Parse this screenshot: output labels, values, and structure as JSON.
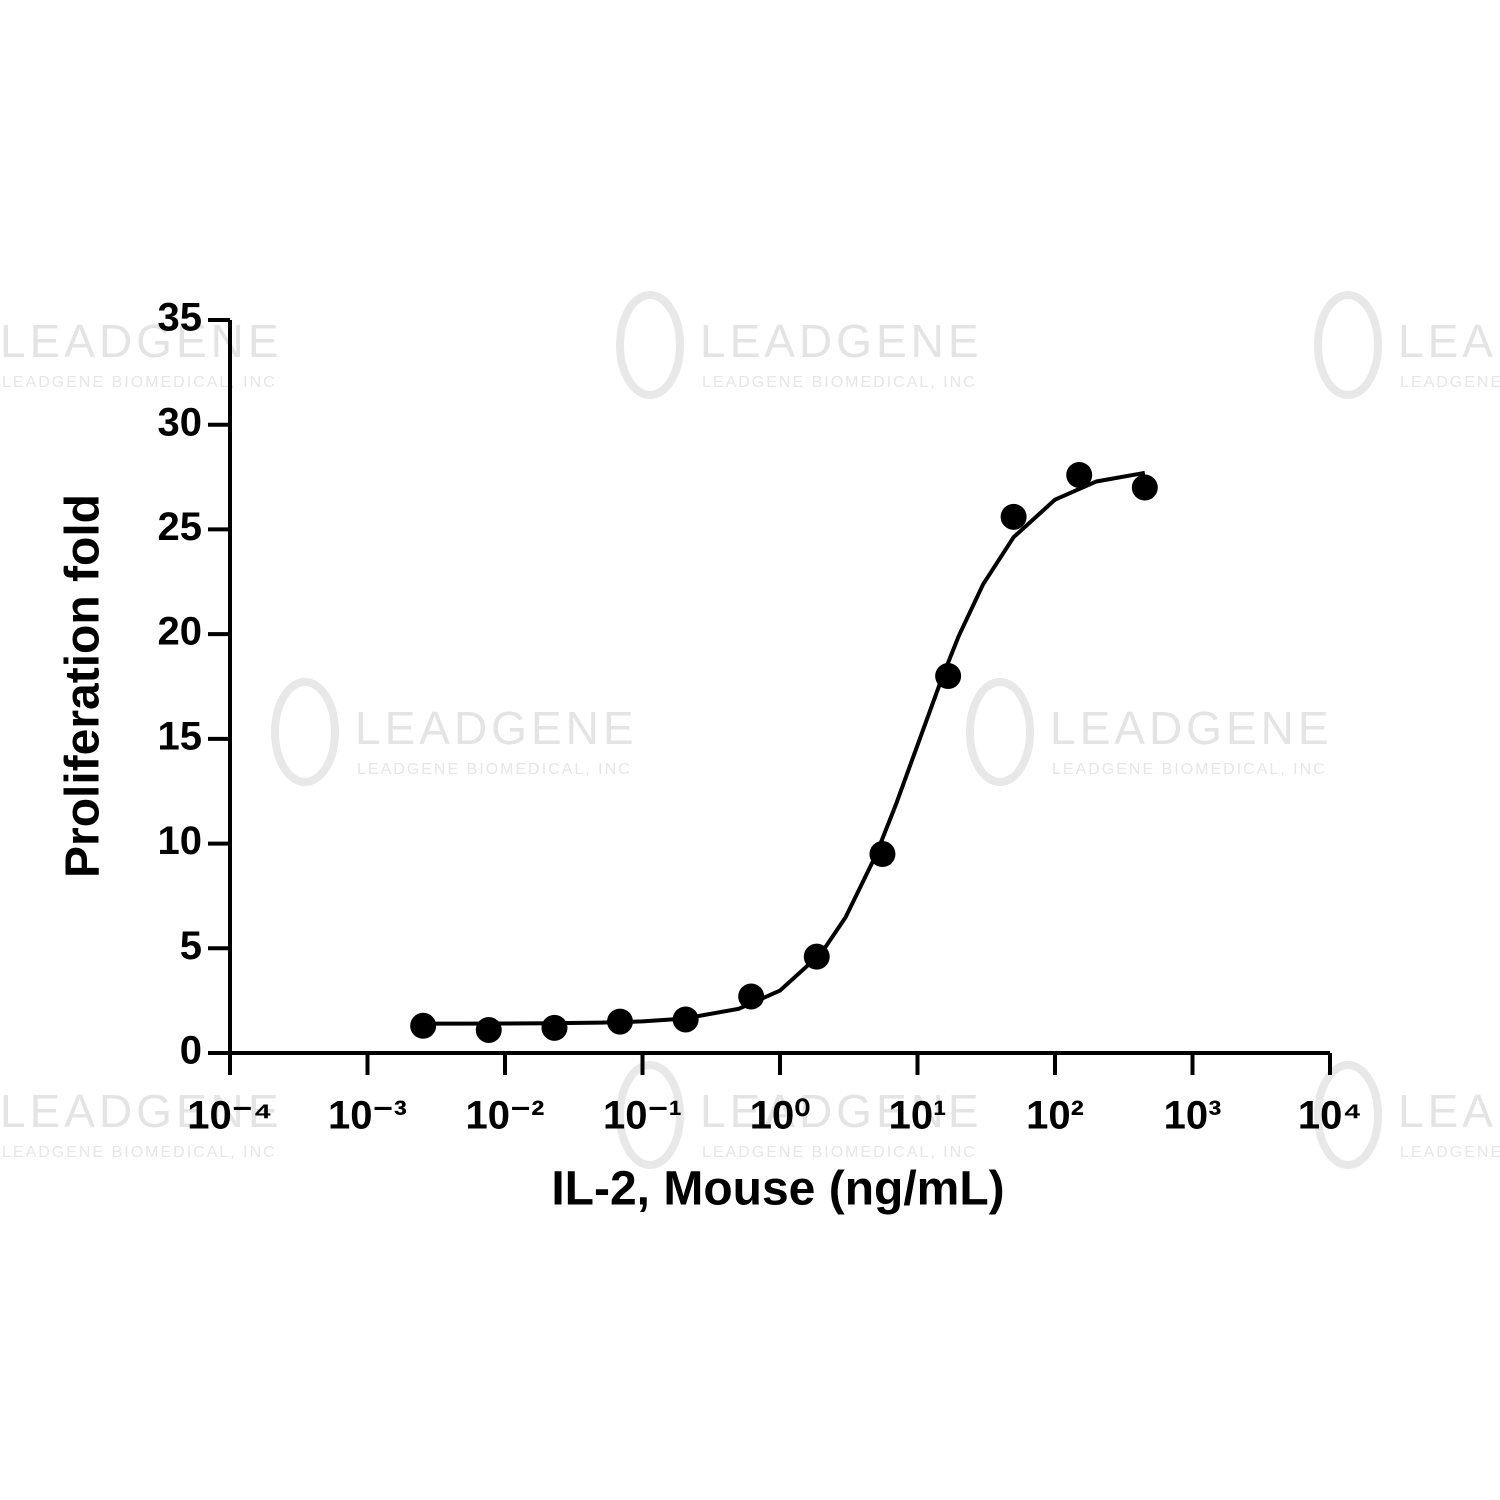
{
  "chart_data": {
    "type": "scatter",
    "xlabel": "IL-2, Mouse (ng/mL)",
    "ylabel": "Proliferation fold",
    "xscale": "log",
    "xlim": [
      0.0001,
      10000
    ],
    "ylim": [
      0,
      35
    ],
    "xticks": [
      {
        "value": 0.0001,
        "label": "10⁻⁴"
      },
      {
        "value": 0.001,
        "label": "10⁻³"
      },
      {
        "value": 0.01,
        "label": "10⁻²"
      },
      {
        "value": 0.1,
        "label": "10⁻¹"
      },
      {
        "value": 1,
        "label": "10⁰"
      },
      {
        "value": 10,
        "label": "10¹"
      },
      {
        "value": 100,
        "label": "10²"
      },
      {
        "value": 1000,
        "label": "10³"
      },
      {
        "value": 10000,
        "label": "10⁴"
      }
    ],
    "yticks": [
      0,
      5,
      10,
      15,
      20,
      25,
      30,
      35
    ],
    "grid": false,
    "series": [
      {
        "style": "points",
        "color": "#000000",
        "x": [
          0.00254,
          0.00762,
          0.0229,
          0.0686,
          0.206,
          0.617,
          1.85,
          5.56,
          16.7,
          50,
          150,
          450
        ],
        "values": [
          1.3,
          1.1,
          1.2,
          1.5,
          1.6,
          2.7,
          4.6,
          9.5,
          18.0,
          25.6,
          27.6,
          27.0
        ]
      },
      {
        "style": "line",
        "color": "#000000",
        "x": [
          0.0025,
          0.005,
          0.01,
          0.02,
          0.05,
          0.1,
          0.2,
          0.5,
          1,
          2,
          3,
          5,
          7,
          10,
          15,
          20,
          30,
          50,
          100,
          200,
          450
        ],
        "values": [
          1.4,
          1.4,
          1.41,
          1.42,
          1.45,
          1.51,
          1.64,
          2.11,
          2.98,
          4.77,
          6.48,
          9.47,
          11.9,
          14.7,
          17.87,
          19.93,
          22.38,
          24.63,
          26.42,
          27.29,
          27.7
        ]
      }
    ]
  },
  "watermark": {
    "brand": "LEADGENE",
    "company": "LEADGENE BIOMEDICAL, INC"
  }
}
